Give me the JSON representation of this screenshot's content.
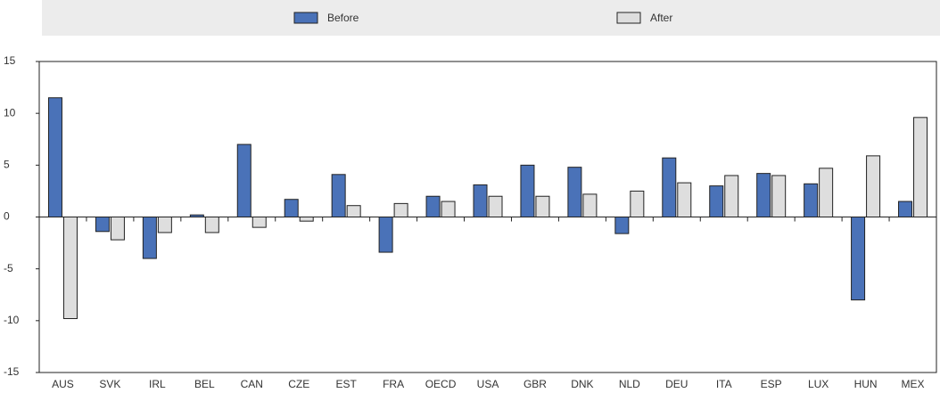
{
  "chart_data": {
    "type": "bar",
    "categories": [
      "AUS",
      "SVK",
      "IRL",
      "BEL",
      "CAN",
      "CZE",
      "EST",
      "FRA",
      "OECD",
      "USA",
      "GBR",
      "DNK",
      "NLD",
      "DEU",
      "ITA",
      "ESP",
      "LUX",
      "HUN",
      "MEX"
    ],
    "series": [
      {
        "name": "Before",
        "color": "#4a72b8",
        "values": [
          11.5,
          -1.4,
          -4.0,
          0.2,
          7.0,
          1.7,
          4.1,
          -3.4,
          2.0,
          3.1,
          5.0,
          4.8,
          -1.6,
          5.7,
          3.0,
          4.2,
          3.2,
          -8.0,
          1.5
        ]
      },
      {
        "name": "After",
        "color": "#dedede",
        "values": [
          -9.8,
          -2.2,
          -1.5,
          -1.5,
          -1.0,
          -0.4,
          1.1,
          1.3,
          1.5,
          2.0,
          2.0,
          2.2,
          2.5,
          3.3,
          4.0,
          4.0,
          4.7,
          5.9,
          9.6
        ]
      }
    ],
    "ylim": [
      -15,
      15
    ],
    "yticks": [
      -15,
      -10,
      -5,
      0,
      5,
      10,
      15
    ],
    "legend": "top"
  }
}
